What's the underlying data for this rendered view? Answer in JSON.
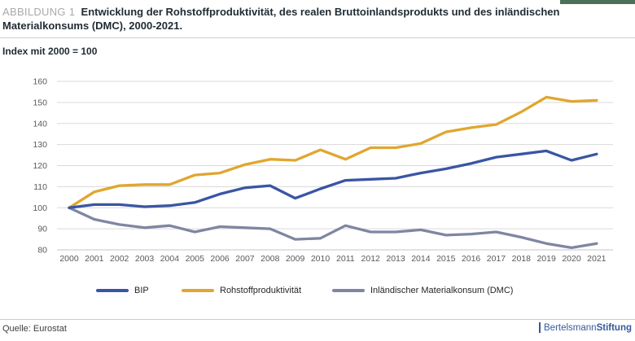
{
  "header": {
    "kicker": "ABBILDUNG 1",
    "title": "Entwicklung der Rohstoffproduktivität, des realen Bruttoinlandsprodukts und des inländischen Materialkonsums (DMC), 2000-2021.",
    "index_note": "Index mit 2000 = 100"
  },
  "footer": {
    "source": "Quelle: Eurostat",
    "logo_prefix": "Bertelsmann",
    "logo_suffix": "Stiftung"
  },
  "colors": {
    "bip_line": "#3a55a4",
    "rohstoff_line": "#e0a62f",
    "dmc_line": "#7e86a1",
    "grid": "#d9d9d9",
    "axis": "#c4c4c4",
    "tick_text": "#595959",
    "corner_accent": "#4b7158",
    "brand_blue": "#36599e"
  },
  "chart_data": {
    "type": "line",
    "title": "Entwicklung der Rohstoffproduktivität, des realen Bruttoinlandsprodukts und des inländischen Materialkonsums (DMC), 2000-2021.",
    "subtitle": "Index mit 2000 = 100",
    "x": [
      2000,
      2001,
      2002,
      2003,
      2004,
      2005,
      2006,
      2007,
      2008,
      2009,
      2010,
      2011,
      2012,
      2013,
      2014,
      2015,
      2016,
      2017,
      2018,
      2019,
      2020,
      2021
    ],
    "series": [
      {
        "name": "BIP",
        "color": "#3a55a4",
        "values": [
          100,
          101.5,
          101.5,
          100.5,
          101,
          102.5,
          106.5,
          109.5,
          110.5,
          104.5,
          109,
          113,
          113.5,
          114,
          116.5,
          118.5,
          121,
          124,
          125.5,
          127,
          122.5,
          125.5
        ]
      },
      {
        "name": "Rohstoffproduktivität",
        "color": "#e0a62f",
        "values": [
          100,
          107.5,
          110.5,
          111,
          111,
          115.5,
          116.5,
          120.5,
          123,
          122.5,
          127.5,
          123,
          128.5,
          128.5,
          130.5,
          136,
          138,
          139.5,
          145.5,
          152.5,
          150.5,
          151
        ]
      },
      {
        "name": "Inländischer Materialkonsum (DMC)",
        "color": "#7e86a1",
        "values": [
          100,
          94.5,
          92,
          90.5,
          91.5,
          88.5,
          91,
          90.5,
          90,
          85,
          85.5,
          91.5,
          88.5,
          88.5,
          89.5,
          87,
          87.5,
          88.5,
          86,
          83,
          81,
          83
        ]
      }
    ],
    "ylim": [
      80,
      160
    ],
    "yticks": [
      160,
      150,
      140,
      130,
      120,
      110,
      100,
      90,
      80
    ],
    "grid": true,
    "legend_position": "bottom",
    "xlabel": "",
    "ylabel": ""
  }
}
